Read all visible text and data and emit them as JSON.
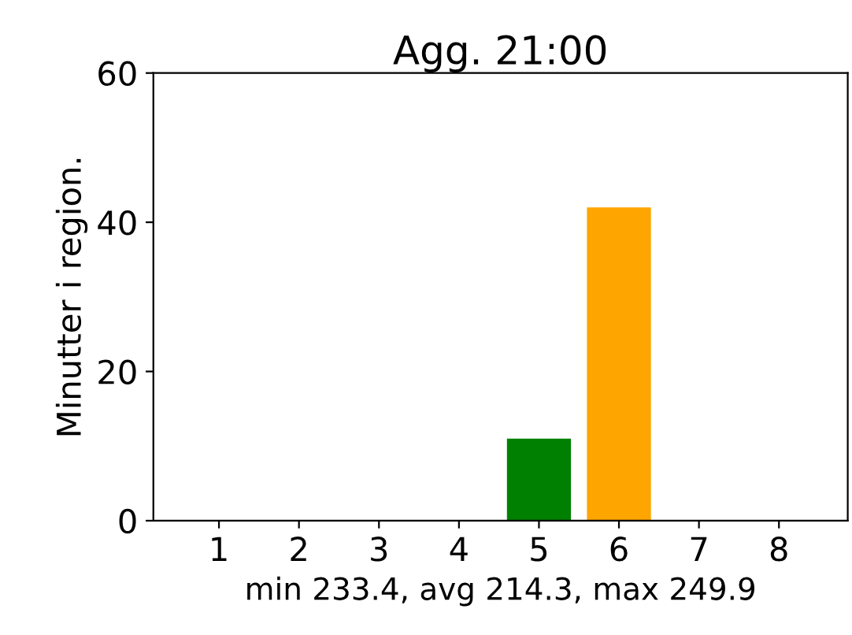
{
  "chart_data": {
    "type": "bar",
    "title": "Agg. 21:00",
    "xlabel": "min 233.4, avg 214.3, max 249.9",
    "ylabel": "Minutter i region.",
    "categories": [
      "1",
      "2",
      "3",
      "4",
      "5",
      "6",
      "7",
      "8"
    ],
    "values": [
      0,
      0,
      0,
      0,
      11,
      42,
      0,
      0
    ],
    "colors": [
      "#808080",
      "#808080",
      "#808080",
      "#808080",
      "#008000",
      "#ffa500",
      "#808080",
      "#808080"
    ],
    "ylim": [
      0,
      60
    ],
    "yticks": [
      0,
      20,
      40,
      60
    ],
    "grid": false,
    "legend": false
  }
}
